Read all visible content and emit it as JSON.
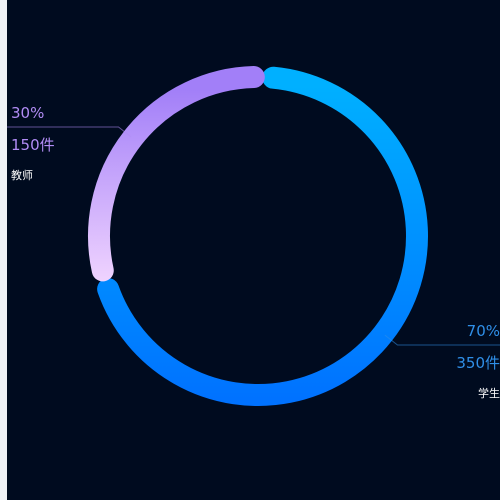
{
  "chart_data": {
    "type": "pie",
    "variant": "donut",
    "slices": [
      {
        "name": "学生",
        "value": 350,
        "percent_label": "70%",
        "value_label": "350件",
        "gradient": [
          "#00b0ff",
          "#0072ff"
        ],
        "label_color": "#2f8fe8"
      },
      {
        "name": "教师",
        "value": 150,
        "percent_label": "30%",
        "value_label": "150件",
        "gradient": [
          "#a27ff8",
          "#f5d9ff"
        ],
        "label_color": "#b18cf5"
      }
    ],
    "legend": "none"
  },
  "theme": {
    "background": "#000b1f",
    "name_color": "#ffffff"
  }
}
